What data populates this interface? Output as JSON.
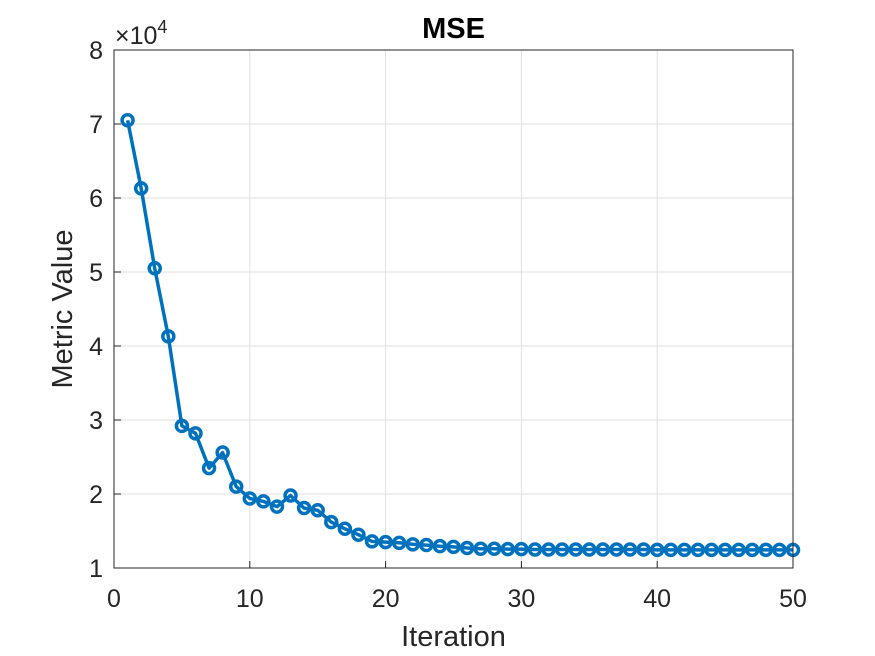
{
  "chart_data": {
    "type": "line",
    "title": "MSE",
    "xlabel": "Iteration",
    "ylabel": "Metric Value",
    "y_multiplier_label": "×10",
    "y_multiplier_exponent": "4",
    "xlim": [
      0,
      50
    ],
    "ylim": [
      10000,
      80000
    ],
    "xticks": [
      0,
      10,
      20,
      30,
      40,
      50
    ],
    "yticks": [
      1,
      2,
      3,
      4,
      5,
      6,
      7,
      8
    ],
    "grid": true,
    "marker": "circle",
    "line_color": "#0072BD",
    "series": [
      {
        "x": [
          1,
          2,
          3,
          4,
          5,
          6,
          7,
          8,
          9,
          10,
          11,
          12,
          13,
          14,
          15,
          16,
          17,
          18,
          19,
          20,
          21,
          22,
          23,
          24,
          25,
          26,
          27,
          28,
          29,
          30,
          31,
          32,
          33,
          34,
          35,
          36,
          37,
          38,
          39,
          40,
          41,
          42,
          43,
          44,
          45,
          46,
          47,
          48,
          49,
          50
        ],
        "values": [
          70500,
          61300,
          50500,
          41300,
          29200,
          28200,
          23500,
          25600,
          21000,
          19400,
          19000,
          18300,
          19800,
          18100,
          17800,
          16200,
          15300,
          14500,
          13600,
          13500,
          13400,
          13200,
          13100,
          12950,
          12850,
          12700,
          12600,
          12600,
          12550,
          12550,
          12500,
          12500,
          12500,
          12500,
          12500,
          12500,
          12500,
          12500,
          12500,
          12450,
          12450,
          12450,
          12450,
          12450,
          12450,
          12450,
          12450,
          12450,
          12450,
          12450
        ]
      }
    ]
  }
}
